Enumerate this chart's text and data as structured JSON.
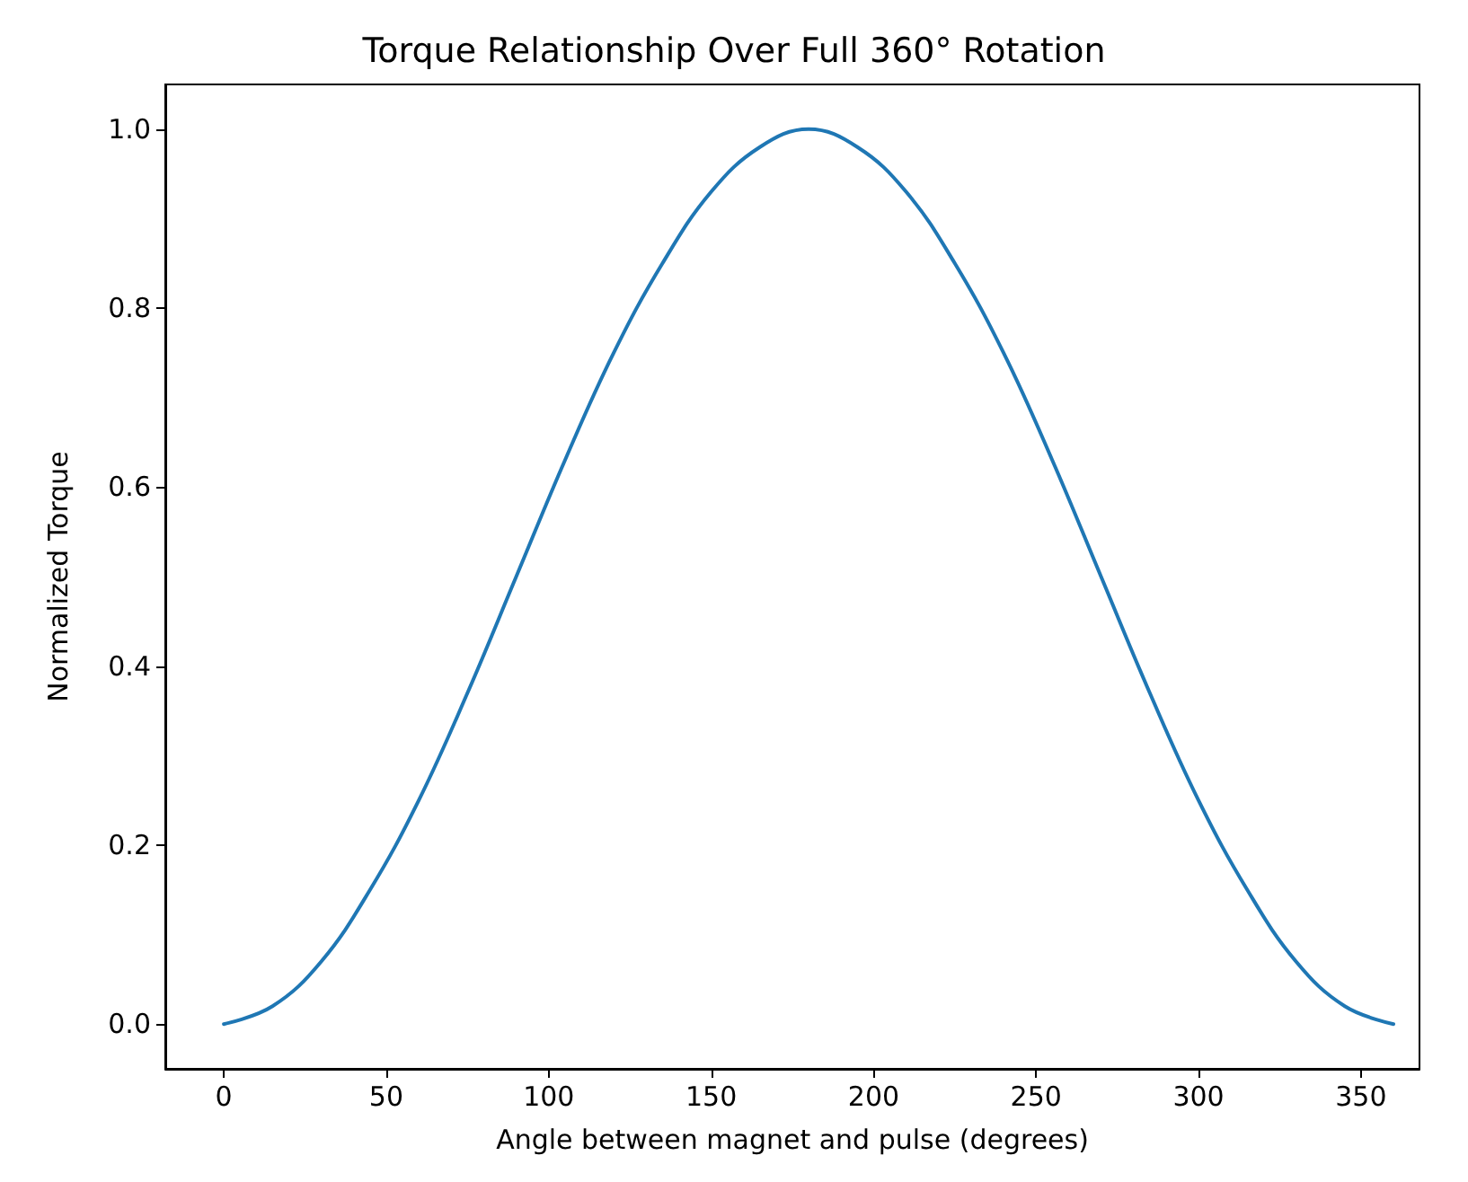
{
  "chart_data": {
    "type": "line",
    "title": "Torque Relationship Over Full 360° Rotation",
    "xlabel": "Angle between magnet and pulse (degrees)",
    "ylabel": "Normalized Torque",
    "x": [
      0,
      15,
      30,
      45,
      60,
      75,
      90,
      105,
      120,
      135,
      150,
      165,
      180,
      195,
      210,
      225,
      240,
      255,
      270,
      285,
      300,
      315,
      330,
      345,
      360
    ],
    "series": [
      {
        "color": "#1f77b4",
        "values": [
          0,
          0.02,
          0.07,
          0.15,
          0.25,
          0.37,
          0.5,
          0.63,
          0.75,
          0.85,
          0.93,
          0.98,
          1.0,
          0.98,
          0.93,
          0.85,
          0.75,
          0.63,
          0.5,
          0.37,
          0.25,
          0.15,
          0.07,
          0.02,
          0
        ]
      }
    ],
    "xlim": [
      -18,
      368
    ],
    "xticks": [
      0,
      50,
      100,
      150,
      200,
      250,
      300,
      350
    ],
    "ylim": [
      -0.05,
      1.05
    ],
    "yticks": [
      {
        "value": 0,
        "label": "0.0"
      },
      {
        "value": 0.2,
        "label": "0.2"
      },
      {
        "value": 0.4,
        "label": "0.4"
      },
      {
        "value": 0.6,
        "label": "0.6"
      },
      {
        "value": 0.8,
        "label": "0.8"
      },
      {
        "value": 1,
        "label": "1.0"
      }
    ],
    "grid": false,
    "marker": "none",
    "line_style": "solid"
  }
}
